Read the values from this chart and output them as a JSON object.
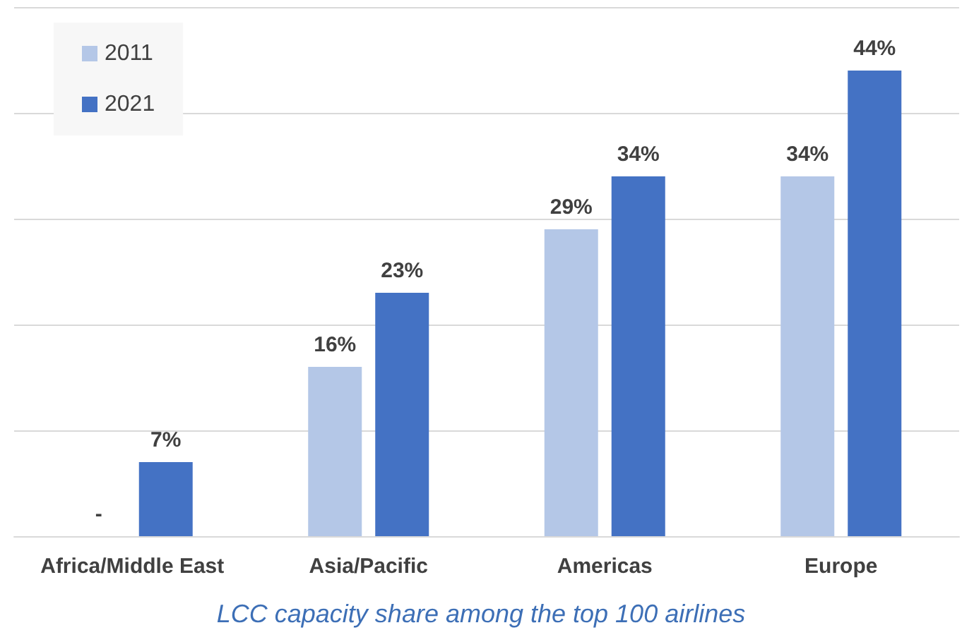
{
  "chart_data": {
    "type": "bar",
    "title": "LCC capacity share among the top 100 airlines",
    "categories": [
      "Africa/Middle East",
      "Asia/Pacific",
      "Americas",
      "Europe"
    ],
    "series": [
      {
        "name": "2011",
        "color": "#b4c7e7",
        "values": [
          null,
          16,
          29,
          34
        ],
        "value_labels": [
          "-",
          "16%",
          "29%",
          "34%"
        ]
      },
      {
        "name": "2021",
        "color": "#4472c4",
        "values": [
          7,
          23,
          34,
          44
        ],
        "value_labels": [
          "7%",
          "23%",
          "34%",
          "44%"
        ]
      }
    ],
    "ylim": [
      0,
      50
    ],
    "yticks": [
      {
        "value": 0,
        "label": null
      },
      {
        "value": 10,
        "label": null
      },
      {
        "value": 20,
        "label": null
      },
      {
        "value": 30,
        "label": null
      },
      {
        "value": 40,
        "label": null
      },
      {
        "value": 50,
        "label": null
      }
    ],
    "tick_labels": "x",
    "grid": "y",
    "legend": "top left"
  }
}
